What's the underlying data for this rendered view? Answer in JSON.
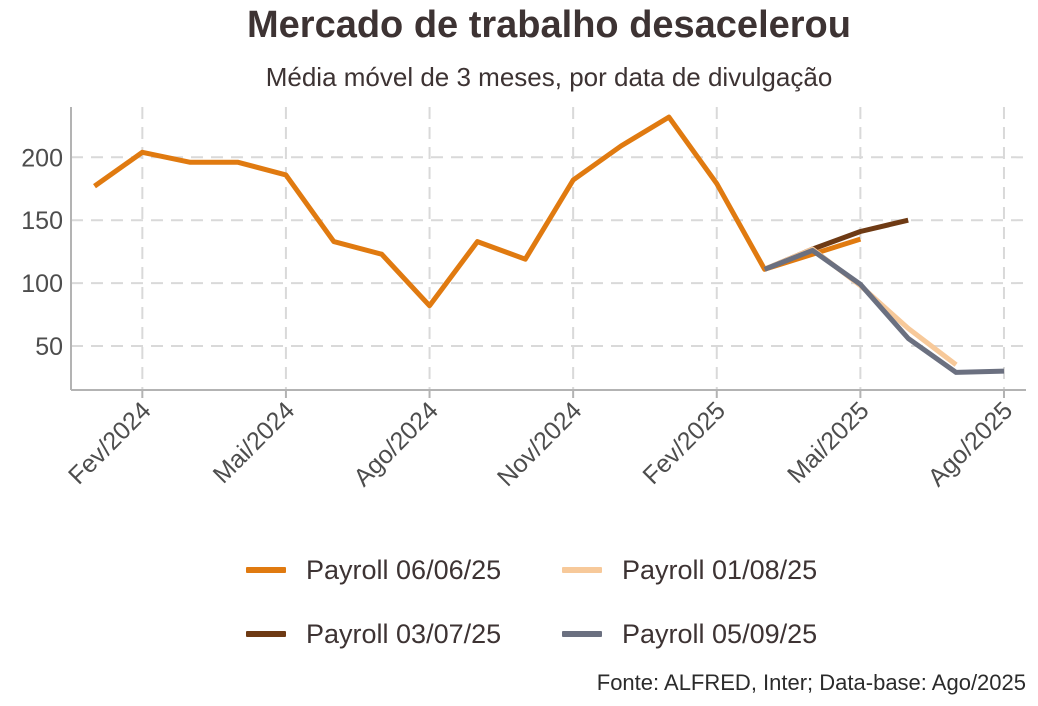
{
  "chart_data": {
    "type": "line",
    "title": "Mercado de trabalho desacelerou",
    "subtitle": "Média móvel de 3 meses, por data de divulgação",
    "xlabel": "",
    "ylabel": "",
    "x_ticks": [
      "Fev/2024",
      "Mai/2024",
      "Ago/2024",
      "Nov/2024",
      "Fev/2025",
      "Mai/2025",
      "Ago/2025"
    ],
    "y_ticks": [
      50,
      100,
      150,
      200
    ],
    "ylim": [
      15,
      240
    ],
    "xlim": [
      "2024-01-01",
      "2025-08-31"
    ],
    "grid": true,
    "legend_position": "bottom",
    "series": [
      {
        "name": "Payroll 06/06/25",
        "color": "#e07a10",
        "points": [
          [
            "2024-01",
            177
          ],
          [
            "2024-02",
            204
          ],
          [
            "2024-03",
            196
          ],
          [
            "2024-04",
            196
          ],
          [
            "2024-05",
            186
          ],
          [
            "2024-06",
            133
          ],
          [
            "2024-07",
            123
          ],
          [
            "2024-08",
            82
          ],
          [
            "2024-09",
            133
          ],
          [
            "2024-10",
            119
          ],
          [
            "2024-11",
            182
          ],
          [
            "2024-12",
            209
          ],
          [
            "2025-01",
            232
          ],
          [
            "2025-02",
            179
          ],
          [
            "2025-03",
            111
          ],
          [
            "2025-04",
            123
          ],
          [
            "2025-05",
            135
          ]
        ]
      },
      {
        "name": "Payroll 03/07/25",
        "color": "#6e3a14",
        "points": [
          [
            "2025-03",
            111
          ],
          [
            "2025-04",
            127
          ],
          [
            "2025-05",
            141
          ],
          [
            "2025-06",
            150
          ]
        ]
      },
      {
        "name": "Payroll 01/08/25",
        "color": "#f7c99a",
        "points": [
          [
            "2025-03",
            111
          ],
          [
            "2025-04",
            127
          ],
          [
            "2025-05",
            98
          ],
          [
            "2025-06",
            64
          ],
          [
            "2025-07",
            35
          ]
        ]
      },
      {
        "name": "Payroll 05/09/25",
        "color": "#6b7080",
        "points": [
          [
            "2025-03",
            111
          ],
          [
            "2025-04",
            126
          ],
          [
            "2025-05",
            99
          ],
          [
            "2025-06",
            56
          ],
          [
            "2025-07",
            29
          ],
          [
            "2025-08",
            30
          ]
        ]
      }
    ],
    "legend_order": [
      0,
      2,
      1,
      3
    ]
  },
  "source": "Fonte: ALFRED, Inter; Data-base: Ago/2025"
}
